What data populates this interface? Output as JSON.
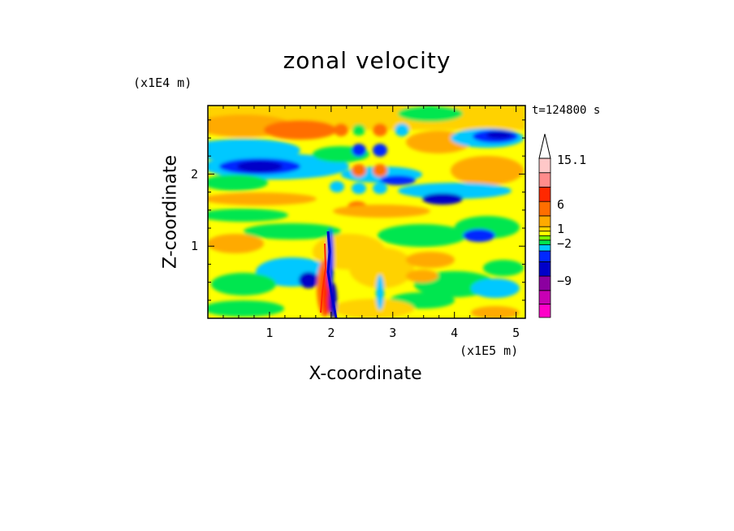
{
  "chart_data": {
    "type": "heatmap",
    "title": "zonal velocity",
    "xlabel": "X-coordinate",
    "ylabel": "Z-coordinate",
    "x_unit": "(x1E5 m)",
    "y_unit": "(x1E4 m)",
    "annotation": "t=124800 s",
    "xlim": [
      0,
      5.15
    ],
    "ylim": [
      0,
      2.95
    ],
    "x_ticks": [
      "1",
      "2",
      "3",
      "4",
      "5"
    ],
    "y_ticks": [
      "1",
      "2"
    ],
    "colorbar": {
      "labels": [
        "15.1",
        "6",
        "1",
        "−2",
        "−9"
      ],
      "colors": [
        "#ff00c8",
        "#c800b4",
        "#8c00a0",
        "#0000c8",
        "#0028ff",
        "#00c8ff",
        "#00e650",
        "#78f000",
        "#ffff00",
        "#ffd200",
        "#ffaa00",
        "#ff6e00",
        "#ff2800",
        "#ff8c8c",
        "#ffc8c8"
      ]
    },
    "features": [
      {
        "x": 1.0,
        "z": 2.15,
        "value": -9
      },
      {
        "x": 1.9,
        "z": 0.6,
        "value": -12
      },
      {
        "x": 2.45,
        "z": 1.0,
        "value": 3
      },
      {
        "x": 3.6,
        "z": 1.6,
        "value": -6
      },
      {
        "x": 4.7,
        "z": 2.5,
        "value": -7
      },
      {
        "x": 4.1,
        "z": 2.2,
        "value": 5
      }
    ]
  }
}
